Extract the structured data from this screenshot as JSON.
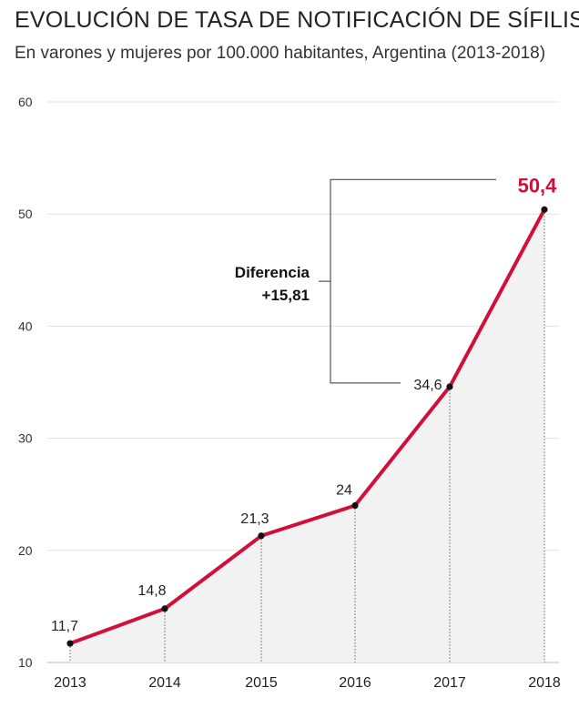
{
  "chart_data": {
    "type": "area",
    "title": "EVOLUCIÓN DE TASA DE NOTIFICACIÓN DE SÍFILIS",
    "subtitle": "En varones y mujeres por 100.000 habitantes, Argentina (2013-2018)",
    "categories": [
      "2013",
      "2014",
      "2015",
      "2016",
      "2017",
      "2018"
    ],
    "values": [
      11.7,
      14.8,
      21.3,
      24,
      34.6,
      50.4
    ],
    "value_labels": [
      "11,7",
      "14,8",
      "21,3",
      "24",
      "34,6",
      "50,4"
    ],
    "ylim": [
      10,
      60
    ],
    "yticks": [
      10,
      20,
      30,
      40,
      50,
      60
    ],
    "grid": true,
    "line_color": "#d0103a",
    "fill_color": "#f2f2f2",
    "annotation": {
      "line1": "Diferencia",
      "line2": "+15,81",
      "from": "2017",
      "to": "2018"
    }
  }
}
